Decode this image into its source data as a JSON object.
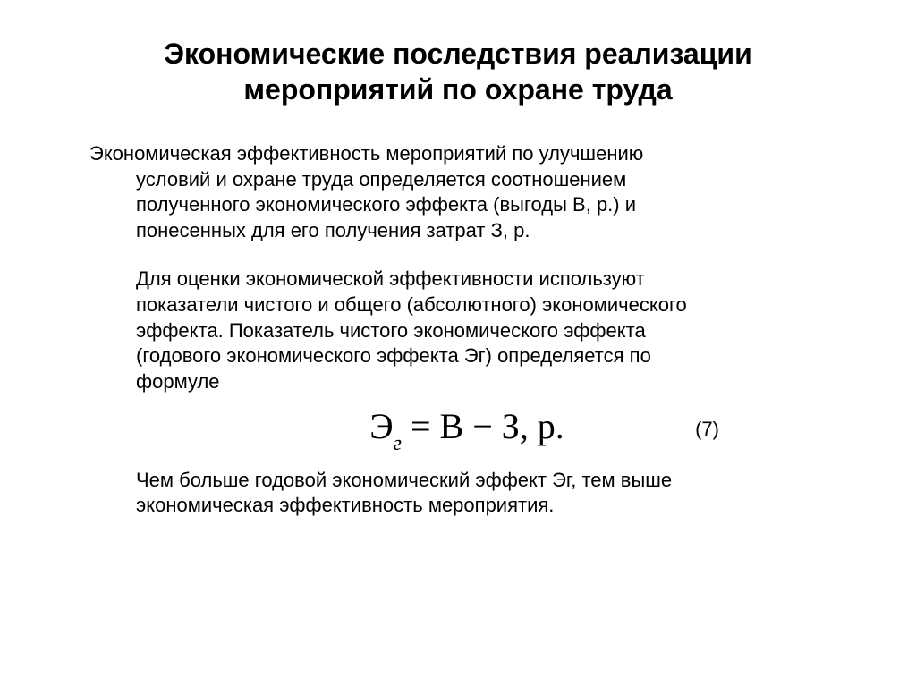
{
  "title": "Экономические последствия реализации мероприятий по охране труда",
  "p1_l1": "Экономическая эффективность мероприятий по улучшению",
  "p1_l2": "условий и охране труда определяется соотношением",
  "p1_l3": "полученного экономического эффекта (выгоды В, р.) и",
  "p1_l4": "понесенных для его получения затрат З, р.",
  "p2_l1": "Для оценки экономической эффективности используют",
  "p2_l2": "показатели чистого и общего (абсолютного) экономического",
  "p2_l3": "эффекта. Показатель чистого экономического эффекта",
  "p2_l4": "(годового экономического эффекта Эг) определяется по",
  "p2_l5": "формуле",
  "formula": {
    "lhs_sym": "Э",
    "lhs_sub": "г",
    "rhs": " = В − З, р.",
    "number": "(7)",
    "font_family": "Times New Roman",
    "fontsize_main": 40,
    "fontsize_sub": 24,
    "color": "#000000"
  },
  "p3_l1": "Чем больше годовой экономический эффект Эг, тем выше",
  "p3_l2": "экономическая эффективность мероприятия.",
  "style": {
    "background": "#ffffff",
    "text_color": "#000000",
    "title_fontsize": 32,
    "body_fontsize": 22,
    "body_font": "Arial"
  }
}
